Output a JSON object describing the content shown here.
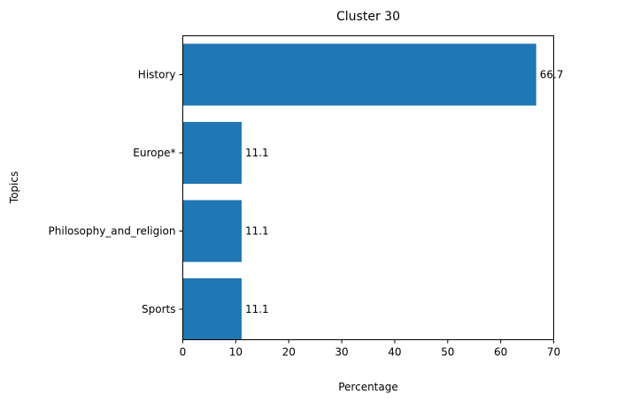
{
  "chart_data": {
    "type": "bar",
    "orientation": "horizontal",
    "title": "Cluster 30",
    "xlabel": "Percentage",
    "ylabel": "Topics",
    "categories": [
      "History",
      "Europe*",
      "Philosophy_and_religion",
      "Sports"
    ],
    "values": [
      66.7,
      11.1,
      11.1,
      11.1
    ],
    "data_labels": [
      "66.7",
      "11.1",
      "11.1",
      "11.1"
    ],
    "xlim": [
      0,
      70
    ],
    "xticks": [
      0,
      10,
      20,
      30,
      40,
      50,
      60,
      70
    ],
    "grid": false,
    "bar_color": "#1f77b4"
  }
}
